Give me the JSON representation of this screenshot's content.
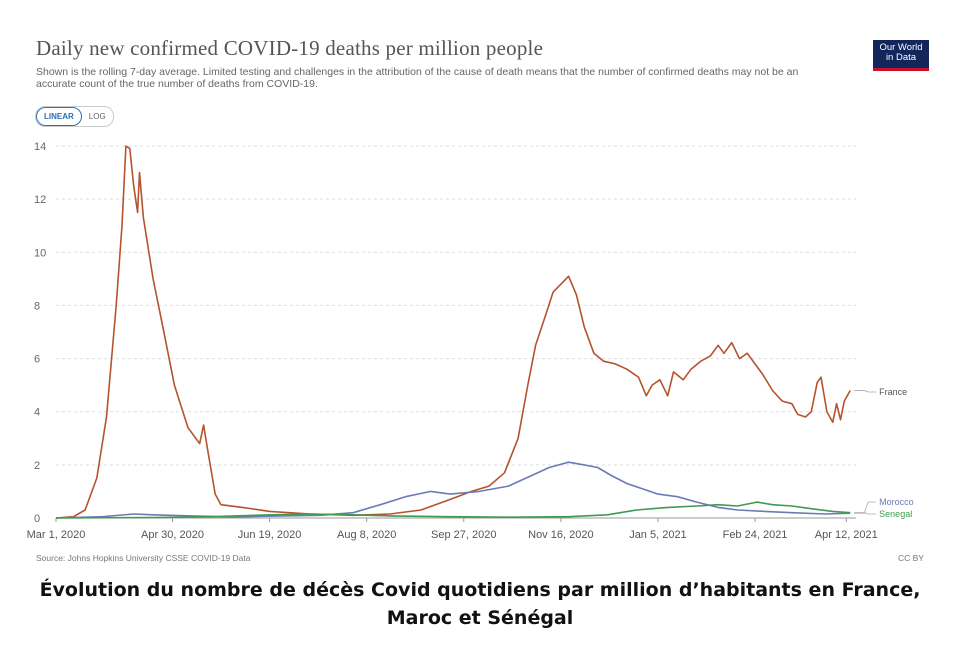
{
  "header": {
    "title": "Daily new confirmed COVID-19 deaths per million people",
    "subtitle": "Shown is the rolling 7-day average. Limited testing and challenges in the attribution of the cause of death means that the number of confirmed deaths may not be an accurate count of the true number of deaths from COVID-19."
  },
  "logo": {
    "line1": "Our World",
    "line2": "in Data"
  },
  "toggle": {
    "linear": "LINEAR",
    "log": "LOG"
  },
  "footer": {
    "source": "Source: Johns Hopkins University CSSE COVID-19 Data",
    "license": "CC BY"
  },
  "caption": {
    "line1": "Évolution du nombre de décès Covid quotidiens par million d’habitants en France,",
    "line2": "Maroc et Sénégal"
  },
  "colors": {
    "france": "#b5532e",
    "morocco": "#6c7bb3",
    "senegal": "#3f9a52",
    "grid": "#dddddd"
  },
  "chart_data": {
    "type": "line",
    "title": "Daily new confirmed COVID-19 deaths per million people",
    "xlabel": "",
    "ylabel": "",
    "scale": "linear",
    "ylim": [
      0,
      14
    ],
    "yticks": [
      0,
      2,
      4,
      6,
      8,
      10,
      12,
      14
    ],
    "xlim": [
      "2020-03-01",
      "2021-04-17"
    ],
    "xticks": [
      {
        "date": "2020-03-01",
        "label": "Mar 1, 2020"
      },
      {
        "date": "2020-04-30",
        "label": "Apr 30, 2020"
      },
      {
        "date": "2020-06-19",
        "label": "Jun 19, 2020"
      },
      {
        "date": "2020-08-08",
        "label": "Aug 8, 2020"
      },
      {
        "date": "2020-09-27",
        "label": "Sep 27, 2020"
      },
      {
        "date": "2020-11-16",
        "label": "Nov 16, 2020"
      },
      {
        "date": "2021-01-05",
        "label": "Jan 5, 2021"
      },
      {
        "date": "2021-02-24",
        "label": "Feb 24, 2021"
      },
      {
        "date": "2021-04-12",
        "label": "Apr 12, 2021"
      }
    ],
    "grid": true,
    "legend_position": "right",
    "series": [
      {
        "name": "France",
        "color": "#b5532e",
        "points": [
          [
            "2020-03-01",
            0
          ],
          [
            "2020-03-10",
            0.05
          ],
          [
            "2020-03-16",
            0.3
          ],
          [
            "2020-03-22",
            1.5
          ],
          [
            "2020-03-27",
            3.8
          ],
          [
            "2020-04-01",
            8.0
          ],
          [
            "2020-04-04",
            11.0
          ],
          [
            "2020-04-06",
            14.0
          ],
          [
            "2020-04-08",
            13.9
          ],
          [
            "2020-04-10",
            12.5
          ],
          [
            "2020-04-12",
            11.5
          ],
          [
            "2020-04-13",
            13.0
          ],
          [
            "2020-04-15",
            11.3
          ],
          [
            "2020-04-20",
            9.0
          ],
          [
            "2020-04-25",
            7.2
          ],
          [
            "2020-05-01",
            5.0
          ],
          [
            "2020-05-08",
            3.4
          ],
          [
            "2020-05-14",
            2.8
          ],
          [
            "2020-05-16",
            3.5
          ],
          [
            "2020-05-18",
            2.6
          ],
          [
            "2020-05-22",
            0.9
          ],
          [
            "2020-05-25",
            0.5
          ],
          [
            "2020-06-05",
            0.4
          ],
          [
            "2020-06-19",
            0.25
          ],
          [
            "2020-07-10",
            0.15
          ],
          [
            "2020-08-01",
            0.1
          ],
          [
            "2020-08-20",
            0.15
          ],
          [
            "2020-09-05",
            0.3
          ],
          [
            "2020-09-20",
            0.7
          ],
          [
            "2020-10-01",
            1.0
          ],
          [
            "2020-10-10",
            1.2
          ],
          [
            "2020-10-18",
            1.7
          ],
          [
            "2020-10-25",
            3.0
          ],
          [
            "2020-10-30",
            5.0
          ],
          [
            "2020-11-03",
            6.5
          ],
          [
            "2020-11-08",
            7.6
          ],
          [
            "2020-11-12",
            8.5
          ],
          [
            "2020-11-16",
            8.8
          ],
          [
            "2020-11-20",
            9.1
          ],
          [
            "2020-11-24",
            8.4
          ],
          [
            "2020-11-28",
            7.2
          ],
          [
            "2020-12-03",
            6.2
          ],
          [
            "2020-12-08",
            5.9
          ],
          [
            "2020-12-14",
            5.8
          ],
          [
            "2020-12-20",
            5.6
          ],
          [
            "2020-12-26",
            5.3
          ],
          [
            "2020-12-30",
            4.6
          ],
          [
            "2021-01-02",
            5.0
          ],
          [
            "2021-01-06",
            5.2
          ],
          [
            "2021-01-10",
            4.6
          ],
          [
            "2021-01-13",
            5.5
          ],
          [
            "2021-01-18",
            5.2
          ],
          [
            "2021-01-22",
            5.6
          ],
          [
            "2021-01-27",
            5.9
          ],
          [
            "2021-02-01",
            6.1
          ],
          [
            "2021-02-05",
            6.5
          ],
          [
            "2021-02-08",
            6.2
          ],
          [
            "2021-02-12",
            6.6
          ],
          [
            "2021-02-16",
            6.0
          ],
          [
            "2021-02-20",
            6.2
          ],
          [
            "2021-02-24",
            5.8
          ],
          [
            "2021-02-28",
            5.4
          ],
          [
            "2021-03-05",
            4.8
          ],
          [
            "2021-03-10",
            4.4
          ],
          [
            "2021-03-15",
            4.3
          ],
          [
            "2021-03-18",
            3.9
          ],
          [
            "2021-03-22",
            3.8
          ],
          [
            "2021-03-25",
            4.0
          ],
          [
            "2021-03-28",
            5.1
          ],
          [
            "2021-03-30",
            5.3
          ],
          [
            "2021-04-02",
            4.0
          ],
          [
            "2021-04-05",
            3.6
          ],
          [
            "2021-04-07",
            4.3
          ],
          [
            "2021-04-09",
            3.7
          ],
          [
            "2021-04-11",
            4.4
          ],
          [
            "2021-04-14",
            4.8
          ]
        ]
      },
      {
        "name": "Morocco",
        "color": "#6c7bb3",
        "points": [
          [
            "2020-03-01",
            0
          ],
          [
            "2020-03-25",
            0.05
          ],
          [
            "2020-04-10",
            0.15
          ],
          [
            "2020-04-20",
            0.12
          ],
          [
            "2020-05-10",
            0.08
          ],
          [
            "2020-06-01",
            0.04
          ],
          [
            "2020-06-25",
            0.08
          ],
          [
            "2020-07-15",
            0.1
          ],
          [
            "2020-08-01",
            0.2
          ],
          [
            "2020-08-15",
            0.5
          ],
          [
            "2020-08-28",
            0.8
          ],
          [
            "2020-09-10",
            1.0
          ],
          [
            "2020-09-20",
            0.9
          ],
          [
            "2020-10-05",
            1.0
          ],
          [
            "2020-10-20",
            1.2
          ],
          [
            "2020-11-01",
            1.6
          ],
          [
            "2020-11-10",
            1.9
          ],
          [
            "2020-11-20",
            2.1
          ],
          [
            "2020-11-28",
            2.0
          ],
          [
            "2020-12-05",
            1.9
          ],
          [
            "2020-12-12",
            1.6
          ],
          [
            "2020-12-20",
            1.3
          ],
          [
            "2020-12-28",
            1.1
          ],
          [
            "2021-01-05",
            0.9
          ],
          [
            "2021-01-15",
            0.8
          ],
          [
            "2021-01-25",
            0.6
          ],
          [
            "2021-02-05",
            0.4
          ],
          [
            "2021-02-15",
            0.3
          ],
          [
            "2021-03-01",
            0.25
          ],
          [
            "2021-03-15",
            0.2
          ],
          [
            "2021-04-01",
            0.15
          ],
          [
            "2021-04-14",
            0.18
          ]
        ]
      },
      {
        "name": "Senegal",
        "color": "#3f9a52",
        "points": [
          [
            "2020-03-01",
            0
          ],
          [
            "2020-04-20",
            0.02
          ],
          [
            "2020-05-20",
            0.05
          ],
          [
            "2020-06-20",
            0.12
          ],
          [
            "2020-07-10",
            0.15
          ],
          [
            "2020-08-01",
            0.12
          ],
          [
            "2020-08-20",
            0.08
          ],
          [
            "2020-09-20",
            0.05
          ],
          [
            "2020-10-20",
            0.03
          ],
          [
            "2020-11-20",
            0.05
          ],
          [
            "2020-12-10",
            0.12
          ],
          [
            "2020-12-25",
            0.3
          ],
          [
            "2021-01-10",
            0.4
          ],
          [
            "2021-01-25",
            0.45
          ],
          [
            "2021-02-05",
            0.5
          ],
          [
            "2021-02-15",
            0.45
          ],
          [
            "2021-02-25",
            0.6
          ],
          [
            "2021-03-05",
            0.5
          ],
          [
            "2021-03-15",
            0.45
          ],
          [
            "2021-03-25",
            0.35
          ],
          [
            "2021-04-05",
            0.25
          ],
          [
            "2021-04-14",
            0.2
          ]
        ]
      }
    ]
  }
}
